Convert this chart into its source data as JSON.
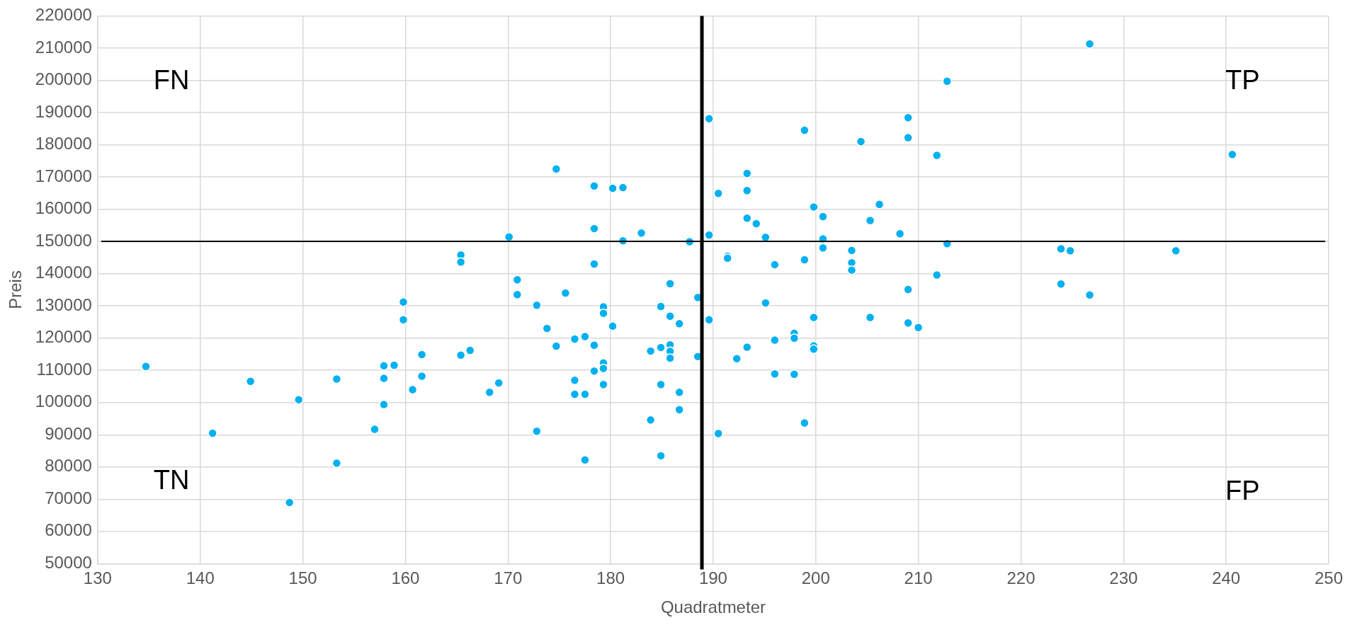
{
  "chart_data": {
    "type": "scatter",
    "xlabel": "Quadratmeter",
    "ylabel": "Preis",
    "xlim": [
      130,
      250
    ],
    "xticks": [
      130,
      140,
      150,
      160,
      170,
      180,
      190,
      200,
      210,
      220,
      230,
      240,
      250
    ],
    "ylim": [
      50000,
      220000
    ],
    "yticks": [
      50000,
      60000,
      70000,
      80000,
      90000,
      100000,
      110000,
      120000,
      130000,
      140000,
      150000,
      160000,
      170000,
      180000,
      190000,
      200000,
      210000,
      220000
    ],
    "grid": true,
    "legend": false,
    "marker": "circle",
    "annotations": [
      "FN",
      "TP",
      "TN",
      "FP"
    ],
    "ref_lines": [
      {
        "axis": "x",
        "value": 188.9,
        "color": "#000000"
      },
      {
        "axis": "y",
        "value": 150000,
        "color": "#000000"
      }
    ],
    "series": [
      {
        "color": "#00b0f0",
        "x": [
          159.8,
          159.8,
          165.4,
          165.4,
          170.1,
          170.9,
          170.9,
          172.8,
          173.8,
          174.7,
          175.6,
          178.4,
          178.4,
          178.4,
          179.3,
          179.3,
          180.2,
          181.2,
          181.2,
          180.2,
          183.0,
          184.9,
          185.8,
          185.8,
          186.7,
          187.7,
          188.5,
          189.6,
          189.6,
          189.6,
          226.7,
          212.8,
          198.9,
          209.0,
          209.0,
          204.4,
          211.8,
          240.6,
          193.3,
          193.3,
          190.5,
          199.8,
          206.2,
          200.7,
          193.3,
          194.2,
          205.3,
          208.2,
          195.1,
          200.7,
          200.7,
          212.8,
          223.9,
          224.8,
          235.1,
          191.4,
          191.4,
          203.5,
          203.5,
          203.5,
          198.9,
          196.0,
          211.8,
          223.9,
          226.7,
          209.0,
          195.1,
          199.8,
          205.3,
          209.0,
          210.0,
          197.9,
          197.9,
          196.0,
          193.3,
          199.8,
          199.8,
          188.5,
          192.3,
          196.0,
          197.9,
          198.9,
          190.5,
          134.7,
          144.9,
          141.2,
          149.6,
          148.7,
          153.3,
          153.3,
          157.0,
          157.9,
          158.9,
          157.9,
          157.9,
          160.7,
          161.6,
          161.6,
          165.4,
          166.3,
          168.2,
          169.1,
          172.8,
          174.7,
          176.5,
          177.5,
          178.4,
          176.5,
          176.5,
          177.5,
          177.5,
          178.4,
          179.3,
          179.3,
          179.3,
          183.9,
          184.9,
          185.8,
          185.8,
          185.8,
          183.9,
          184.9,
          184.9,
          186.7,
          186.7
        ],
        "values": [
          131200,
          125700,
          145800,
          143600,
          151400,
          138100,
          133500,
          130200,
          123000,
          172500,
          134000,
          167200,
          154000,
          143000,
          129700,
          127700,
          166500,
          166700,
          150200,
          123700,
          152600,
          129800,
          136900,
          126800,
          124500,
          149900,
          132600,
          188100,
          152000,
          125700,
          211300,
          199700,
          184500,
          188400,
          182200,
          181000,
          176700,
          177000,
          171100,
          165800,
          164900,
          160700,
          161500,
          157700,
          157200,
          155500,
          156500,
          152400,
          151300,
          150800,
          148000,
          149300,
          147700,
          147100,
          147100,
          145400,
          144800,
          147200,
          143400,
          141100,
          144300,
          142800,
          139600,
          136800,
          133400,
          135100,
          130900,
          126400,
          126400,
          124700,
          123300,
          121500,
          120000,
          119400,
          117200,
          117600,
          116600,
          114300,
          113600,
          108900,
          108800,
          93700,
          90400,
          111200,
          106600,
          90500,
          100900,
          69000,
          107300,
          81200,
          91700,
          111400,
          111600,
          107500,
          99400,
          104000,
          114900,
          108200,
          114700,
          116200,
          103200,
          106100,
          91100,
          117500,
          119700,
          120500,
          117800,
          106900,
          102600,
          102600,
          82200,
          109800,
          112300,
          110600,
          105600,
          116000,
          117100,
          117900,
          115900,
          113800,
          94600,
          105600,
          83500,
          103200,
          97800
        ]
      }
    ]
  }
}
